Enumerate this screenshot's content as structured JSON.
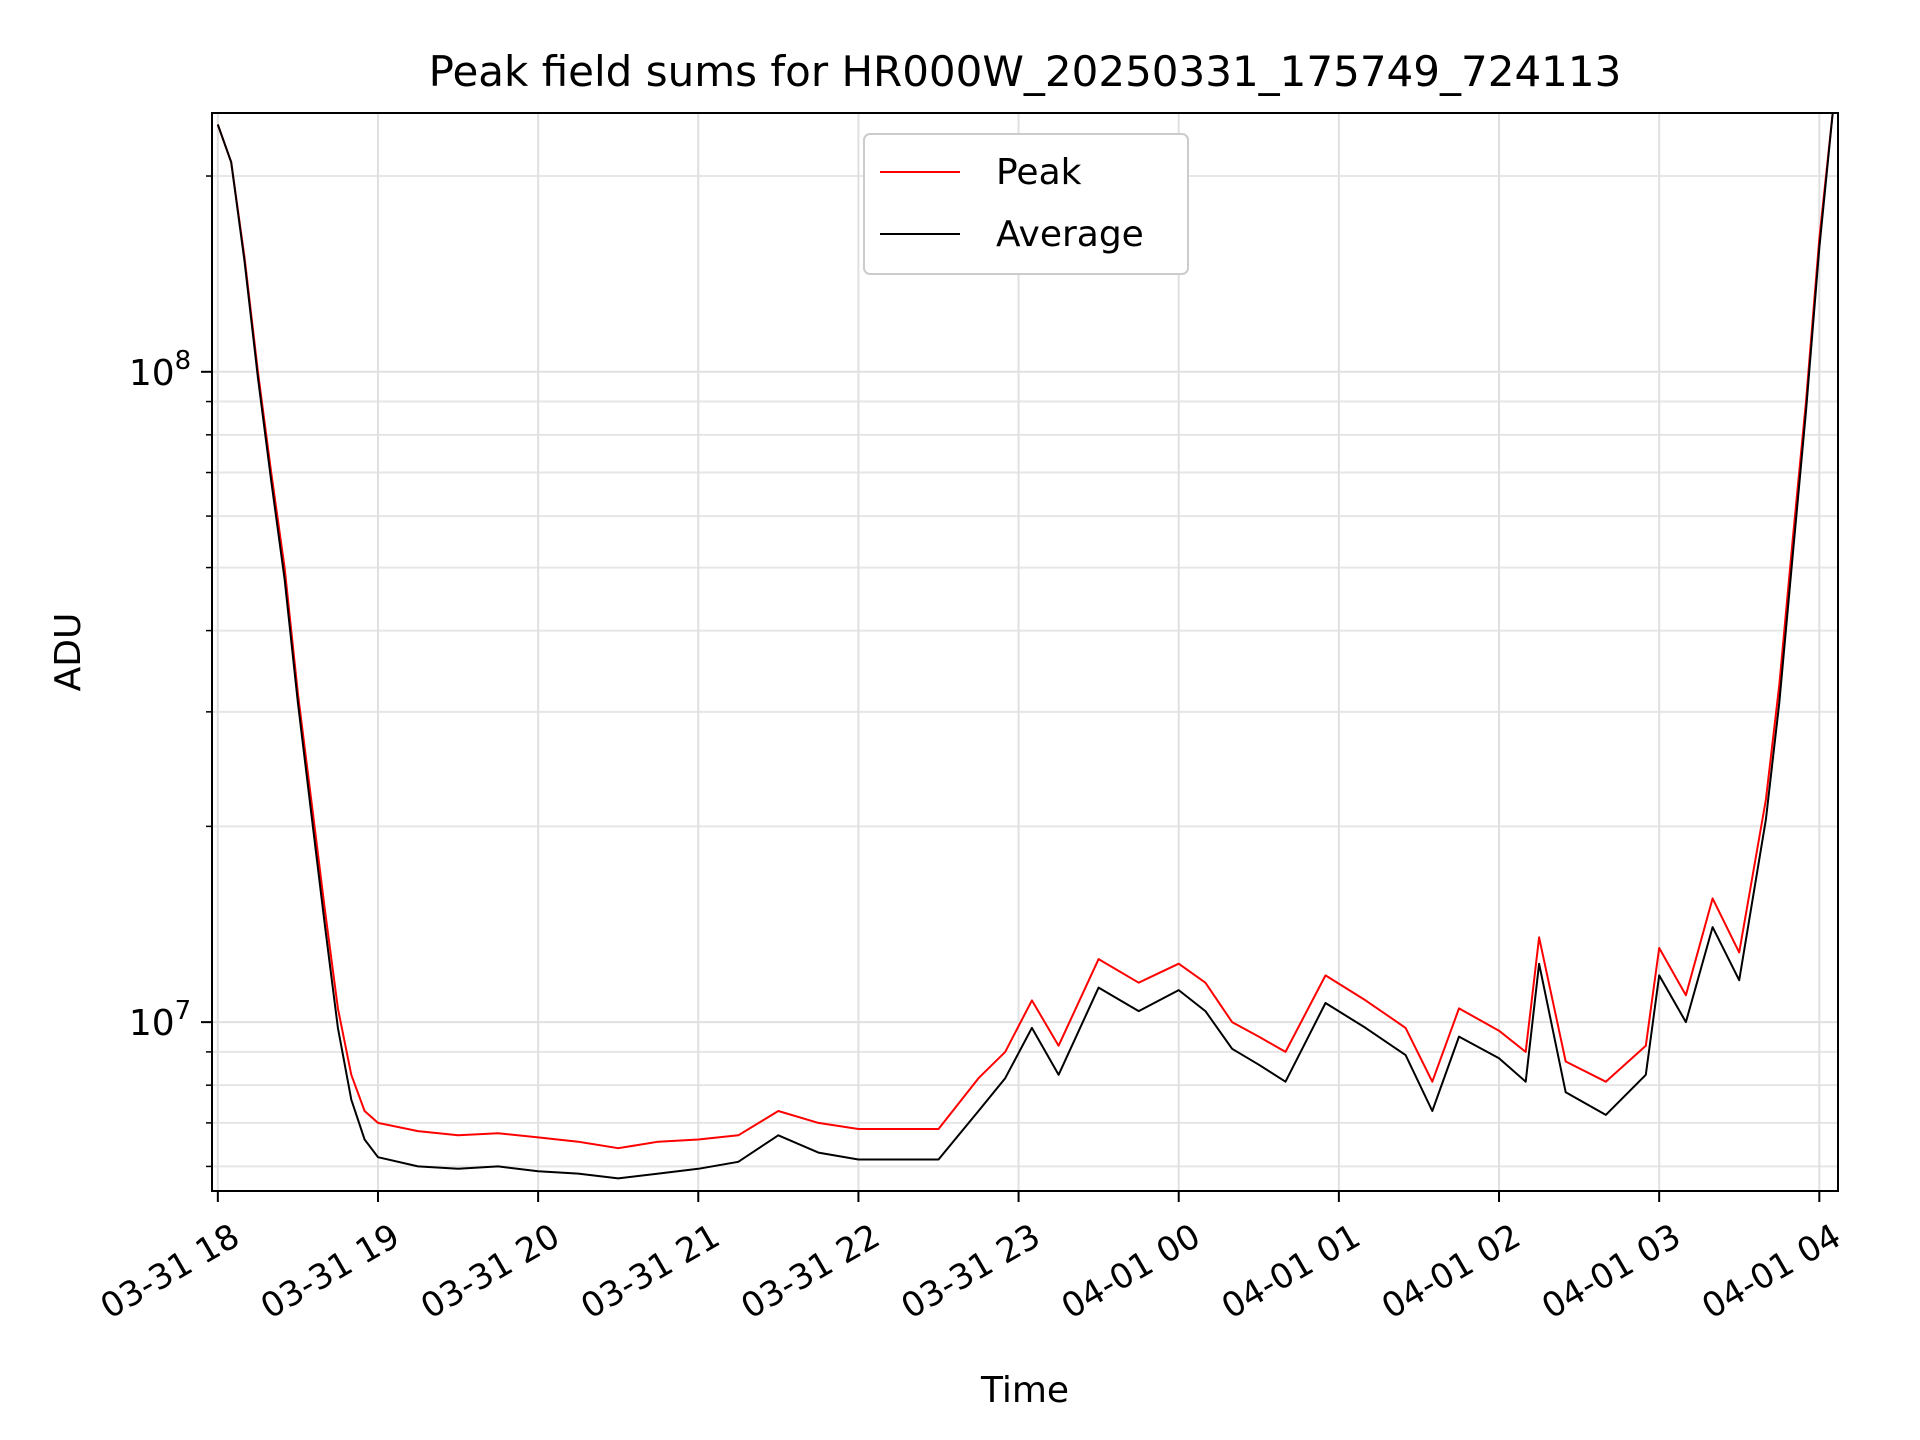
{
  "chart_data": {
    "type": "line",
    "title": "Peak field sums for HR000W_20250331_175749_724113",
    "xlabel": "Time",
    "ylabel": "ADU",
    "yscale": "log",
    "ylim": [
      5500000,
      250000000
    ],
    "xlim": [
      "2025-03-31 17:57:49",
      "2025-04-01 04:07:00"
    ],
    "grid": true,
    "legend_position": "top-center",
    "x_ticks": [
      {
        "t": "2025-03-31 18:00",
        "label": "03-31 18"
      },
      {
        "t": "2025-03-31 19:00",
        "label": "03-31 19"
      },
      {
        "t": "2025-03-31 20:00",
        "label": "03-31 20"
      },
      {
        "t": "2025-03-31 21:00",
        "label": "03-31 21"
      },
      {
        "t": "2025-03-31 22:00",
        "label": "03-31 22"
      },
      {
        "t": "2025-03-31 23:00",
        "label": "03-31 23"
      },
      {
        "t": "2025-04-01 00:00",
        "label": "04-01 00"
      },
      {
        "t": "2025-04-01 01:00",
        "label": "04-01 01"
      },
      {
        "t": "2025-04-01 02:00",
        "label": "04-01 02"
      },
      {
        "t": "2025-04-01 03:00",
        "label": "04-01 03"
      },
      {
        "t": "2025-04-01 04:00",
        "label": "04-01 04"
      }
    ],
    "y_ticks": [
      {
        "value": 10000000,
        "base": "10",
        "exp": "7"
      },
      {
        "value": 100000000,
        "base": "10",
        "exp": "8"
      }
    ],
    "series": [
      {
        "name": "Peak",
        "color": "#ff0000",
        "points": [
          [
            "2025-03-31 18:00",
            240000000
          ],
          [
            "2025-03-31 18:05",
            210000000
          ],
          [
            "2025-03-31 18:10",
            150000000
          ],
          [
            "2025-03-31 18:15",
            100000000
          ],
          [
            "2025-03-31 18:20",
            70000000
          ],
          [
            "2025-03-31 18:25",
            50000000
          ],
          [
            "2025-03-31 18:30",
            32000000
          ],
          [
            "2025-03-31 18:35",
            22000000
          ],
          [
            "2025-03-31 18:40",
            15000000
          ],
          [
            "2025-03-31 18:45",
            10500000
          ],
          [
            "2025-03-31 18:50",
            8300000
          ],
          [
            "2025-03-31 18:55",
            7300000
          ],
          [
            "2025-03-31 19:00",
            7000000
          ],
          [
            "2025-03-31 19:15",
            6800000
          ],
          [
            "2025-03-31 19:30",
            6700000
          ],
          [
            "2025-03-31 19:45",
            6750000
          ],
          [
            "2025-03-31 20:00",
            6650000
          ],
          [
            "2025-03-31 20:15",
            6550000
          ],
          [
            "2025-03-31 20:30",
            6400000
          ],
          [
            "2025-03-31 20:45",
            6550000
          ],
          [
            "2025-03-31 21:00",
            6600000
          ],
          [
            "2025-03-31 21:15",
            6700000
          ],
          [
            "2025-03-31 21:30",
            7300000
          ],
          [
            "2025-03-31 21:45",
            7000000
          ],
          [
            "2025-03-31 22:00",
            6850000
          ],
          [
            "2025-03-31 22:15",
            6850000
          ],
          [
            "2025-03-31 22:30",
            6850000
          ],
          [
            "2025-03-31 22:45",
            8200000
          ],
          [
            "2025-03-31 22:55",
            9000000
          ],
          [
            "2025-03-31 23:05",
            10800000
          ],
          [
            "2025-03-31 23:15",
            9200000
          ],
          [
            "2025-03-31 23:30",
            12500000
          ],
          [
            "2025-03-31 23:45",
            11500000
          ],
          [
            "2025-04-01 00:00",
            12300000
          ],
          [
            "2025-04-01 00:10",
            11500000
          ],
          [
            "2025-04-01 00:20",
            10000000
          ],
          [
            "2025-04-01 00:30",
            9500000
          ],
          [
            "2025-04-01 00:40",
            9000000
          ],
          [
            "2025-04-01 00:55",
            11800000
          ],
          [
            "2025-04-01 01:10",
            10800000
          ],
          [
            "2025-04-01 01:25",
            9800000
          ],
          [
            "2025-04-01 01:35",
            8100000
          ],
          [
            "2025-04-01 01:45",
            10500000
          ],
          [
            "2025-04-01 02:00",
            9700000
          ],
          [
            "2025-04-01 02:10",
            9000000
          ],
          [
            "2025-04-01 02:15",
            13500000
          ],
          [
            "2025-04-01 02:25",
            8700000
          ],
          [
            "2025-04-01 02:40",
            8100000
          ],
          [
            "2025-04-01 02:55",
            9200000
          ],
          [
            "2025-04-01 03:00",
            13000000
          ],
          [
            "2025-04-01 03:10",
            11000000
          ],
          [
            "2025-04-01 03:20",
            15500000
          ],
          [
            "2025-04-01 03:30",
            12800000
          ],
          [
            "2025-04-01 03:40",
            22000000
          ],
          [
            "2025-04-01 03:45",
            33000000
          ],
          [
            "2025-04-01 03:50",
            55000000
          ],
          [
            "2025-04-01 03:55",
            90000000
          ],
          [
            "2025-04-01 04:00",
            160000000
          ],
          [
            "2025-04-01 04:05",
            250000000
          ]
        ]
      },
      {
        "name": "Average",
        "color": "#000000",
        "points": [
          [
            "2025-03-31 18:00",
            240000000
          ],
          [
            "2025-03-31 18:05",
            210000000
          ],
          [
            "2025-03-31 18:10",
            148000000
          ],
          [
            "2025-03-31 18:15",
            98000000
          ],
          [
            "2025-03-31 18:20",
            68000000
          ],
          [
            "2025-03-31 18:25",
            48000000
          ],
          [
            "2025-03-31 18:30",
            31000000
          ],
          [
            "2025-03-31 18:35",
            21000000
          ],
          [
            "2025-03-31 18:40",
            14200000
          ],
          [
            "2025-03-31 18:45",
            9800000
          ],
          [
            "2025-03-31 18:50",
            7600000
          ],
          [
            "2025-03-31 18:55",
            6600000
          ],
          [
            "2025-03-31 19:00",
            6200000
          ],
          [
            "2025-03-31 19:15",
            6000000
          ],
          [
            "2025-03-31 19:30",
            5950000
          ],
          [
            "2025-03-31 19:45",
            6000000
          ],
          [
            "2025-03-31 20:00",
            5900000
          ],
          [
            "2025-03-31 20:15",
            5850000
          ],
          [
            "2025-03-31 20:30",
            5750000
          ],
          [
            "2025-03-31 20:45",
            5850000
          ],
          [
            "2025-03-31 21:00",
            5950000
          ],
          [
            "2025-03-31 21:15",
            6100000
          ],
          [
            "2025-03-31 21:30",
            6700000
          ],
          [
            "2025-03-31 21:45",
            6300000
          ],
          [
            "2025-03-31 22:00",
            6150000
          ],
          [
            "2025-03-31 22:15",
            6150000
          ],
          [
            "2025-03-31 22:30",
            6150000
          ],
          [
            "2025-03-31 22:45",
            7300000
          ],
          [
            "2025-03-31 22:55",
            8200000
          ],
          [
            "2025-03-31 23:05",
            9800000
          ],
          [
            "2025-03-31 23:15",
            8300000
          ],
          [
            "2025-03-31 23:30",
            11300000
          ],
          [
            "2025-03-31 23:45",
            10400000
          ],
          [
            "2025-04-01 00:00",
            11200000
          ],
          [
            "2025-04-01 00:10",
            10400000
          ],
          [
            "2025-04-01 00:20",
            9100000
          ],
          [
            "2025-04-01 00:30",
            8600000
          ],
          [
            "2025-04-01 00:40",
            8100000
          ],
          [
            "2025-04-01 00:55",
            10700000
          ],
          [
            "2025-04-01 01:10",
            9800000
          ],
          [
            "2025-04-01 01:25",
            8900000
          ],
          [
            "2025-04-01 01:35",
            7300000
          ],
          [
            "2025-04-01 01:45",
            9500000
          ],
          [
            "2025-04-01 02:00",
            8800000
          ],
          [
            "2025-04-01 02:10",
            8100000
          ],
          [
            "2025-04-01 02:15",
            12300000
          ],
          [
            "2025-04-01 02:25",
            7800000
          ],
          [
            "2025-04-01 02:40",
            7200000
          ],
          [
            "2025-04-01 02:55",
            8300000
          ],
          [
            "2025-04-01 03:00",
            11800000
          ],
          [
            "2025-04-01 03:10",
            10000000
          ],
          [
            "2025-04-01 03:20",
            14000000
          ],
          [
            "2025-04-01 03:30",
            11600000
          ],
          [
            "2025-04-01 03:40",
            20500000
          ],
          [
            "2025-04-01 03:45",
            31000000
          ],
          [
            "2025-04-01 03:50",
            52000000
          ],
          [
            "2025-04-01 03:55",
            87000000
          ],
          [
            "2025-04-01 04:00",
            155000000
          ],
          [
            "2025-04-01 04:05",
            250000000
          ]
        ]
      }
    ]
  }
}
